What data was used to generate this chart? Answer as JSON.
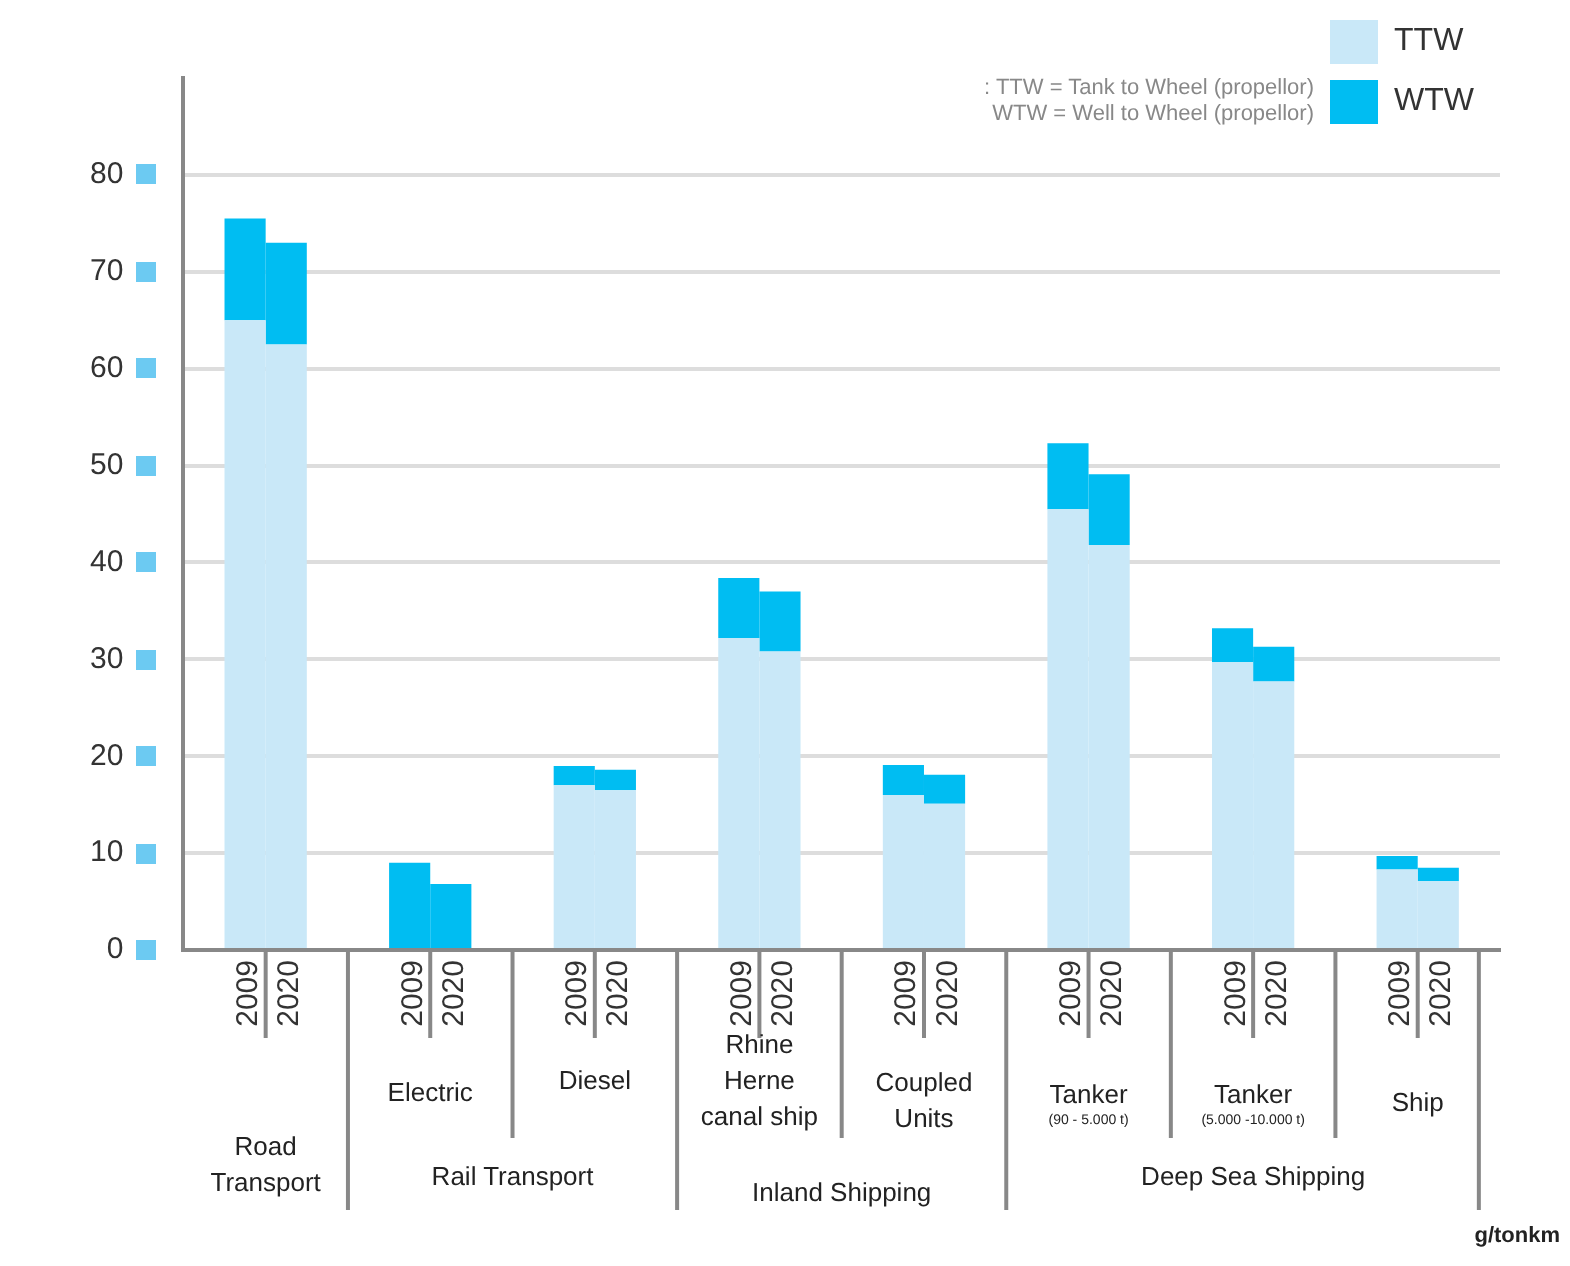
{
  "chart_data": {
    "type": "bar",
    "stacked": true,
    "categories": [
      "2009",
      "2020",
      "2009",
      "2020",
      "2009",
      "2020",
      "2009",
      "2020",
      "2009",
      "2020",
      "2009",
      "2020",
      "2009",
      "2020",
      "2009",
      "2020"
    ],
    "series": [
      {
        "name": "TTW",
        "color": "#c9e8f8",
        "values": [
          65,
          62.5,
          0,
          0,
          17,
          16.5,
          32.2,
          30.8,
          16,
          15.1,
          45.5,
          41.8,
          29.7,
          27.7,
          8.3,
          7.1
        ]
      },
      {
        "name": "WTW",
        "color": "#00bdf2",
        "values": [
          10.5,
          10.5,
          9,
          6.8,
          2,
          2.1,
          6.2,
          6.2,
          3.1,
          3,
          6.8,
          7.3,
          3.5,
          3.6,
          1.4,
          1.4
        ]
      }
    ],
    "ylim": [
      0,
      90
    ],
    "yticks": [
      0,
      10,
      20,
      30,
      40,
      50,
      60,
      70,
      80
    ],
    "grid": "y",
    "legend": "top right",
    "annotations": [
      "Electric",
      "Diesel",
      "Rhine Herne canal ship",
      "Coupled Units",
      "Tanker",
      "(90 - 5.000 t)",
      "Tanker",
      "(5.000 -10.000 t)",
      "Ship",
      "Road Transport",
      "Rail Transport",
      "Inland Shipping",
      "Deep Sea Shipping",
      ": TTW = Tank to Wheel (propellor)",
      "WTW = Well to Wheel (propellor)",
      "g/tonkm"
    ]
  }
}
